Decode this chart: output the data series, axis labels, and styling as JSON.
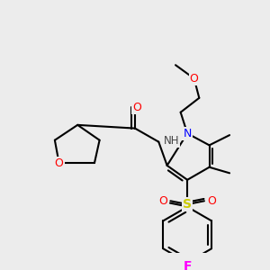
{
  "background_color": "#ececec",
  "bond_color": "#000000",
  "atom_colors": {
    "N": "#0000ff",
    "O": "#ff0000",
    "S": "#cccc00",
    "F": "#ff00ff",
    "H": "#808080",
    "C": "#000000"
  }
}
